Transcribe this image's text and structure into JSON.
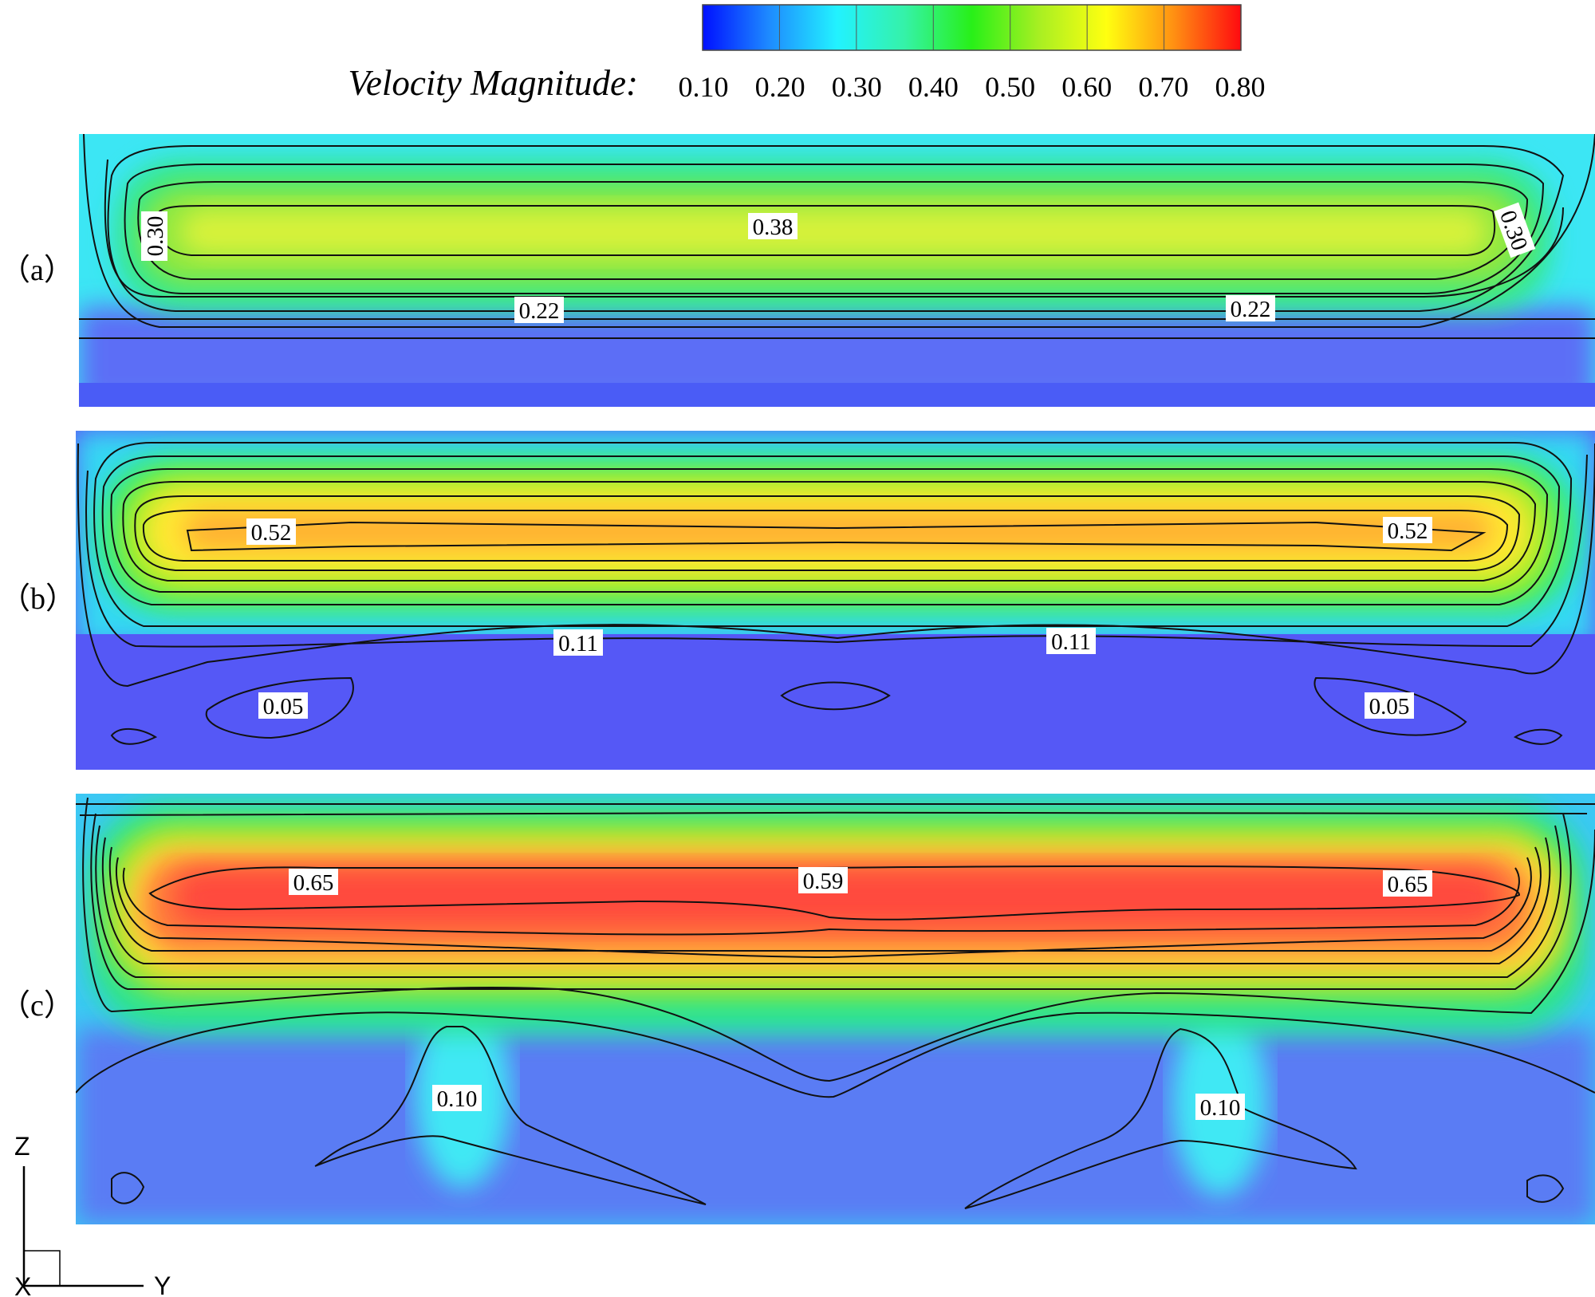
{
  "colorbar": {
    "title": "Velocity Magnitude:",
    "ticks": [
      "0.10",
      "0.20",
      "0.30",
      "0.40",
      "0.50",
      "0.60",
      "0.70",
      "0.80"
    ],
    "colors": [
      "#0010ff",
      "#1e8cff",
      "#22f2ff",
      "#35f2a8",
      "#28f018",
      "#a8ef22",
      "#ffff10",
      "#ff9012",
      "#ff0a10"
    ]
  },
  "chart_data": {
    "type": "contour",
    "colormap_range": [
      0.1,
      0.8
    ],
    "panels": [
      {
        "label": "（a）",
        "contour_labels": [
          "0.30",
          "0.38",
          "0.30",
          "0.22",
          "0.22"
        ],
        "peak_value": 0.4
      },
      {
        "label": "（b）",
        "contour_labels": [
          "0.52",
          "0.52",
          "0.11",
          "0.11",
          "0.05",
          "0.05"
        ],
        "peak_value": 0.55
      },
      {
        "label": "（c）",
        "contour_labels": [
          "0.65",
          "0.59",
          "0.65",
          "0.10",
          "0.10"
        ],
        "peak_value": 0.7
      }
    ]
  },
  "axes_triad": {
    "z": "Z",
    "y": "Y",
    "x": "X"
  }
}
